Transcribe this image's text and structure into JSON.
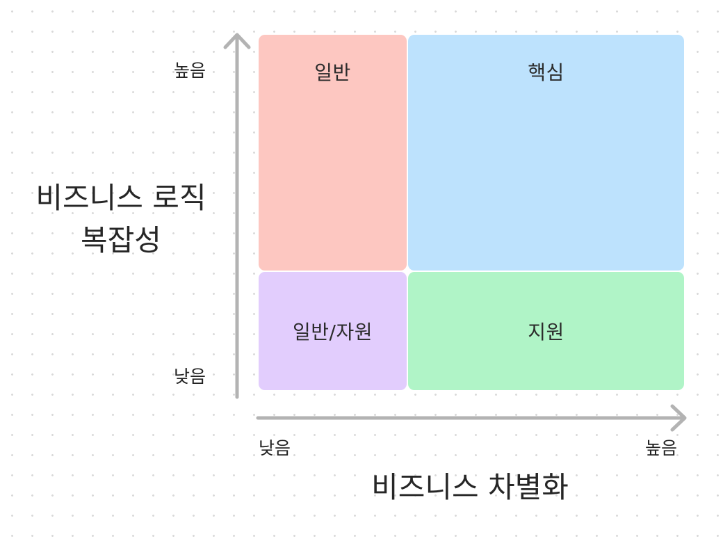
{
  "quadrants": {
    "general": "일반",
    "core": "핵심",
    "generic": "일반/자원",
    "support": "지원"
  },
  "y_axis": {
    "title_line1": "비즈니스 로직",
    "title_line2": "복잡성",
    "high_label": "높음",
    "low_label": "낮음"
  },
  "x_axis": {
    "title": "비즈니스 차별화",
    "low_label": "낮음",
    "high_label": "높음"
  },
  "colors": {
    "general": "#fdc7c1",
    "core": "#bde2fd",
    "generic": "#e2cdfd",
    "support": "#b0f4c7",
    "axis": "#b3b3b3"
  }
}
